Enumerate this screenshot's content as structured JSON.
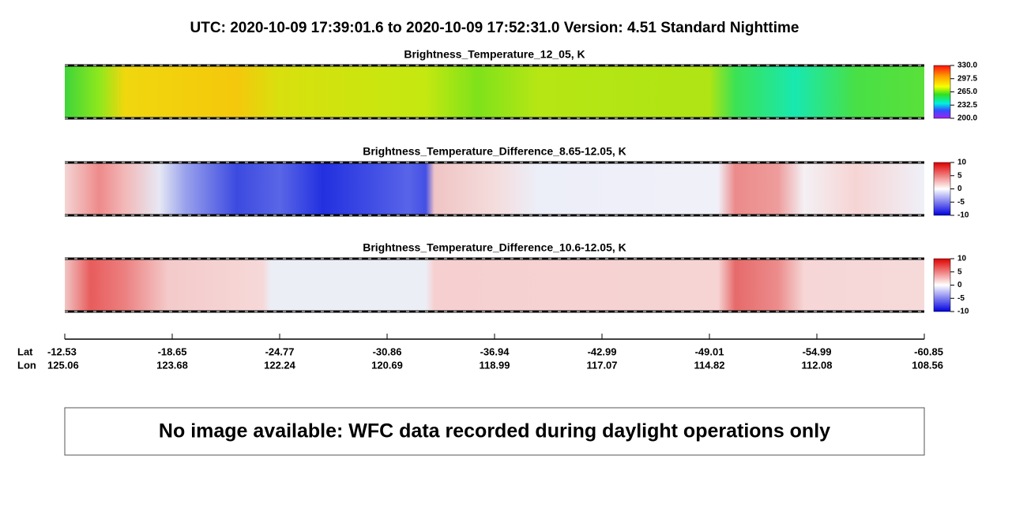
{
  "header": {
    "title": "UTC:  2020-10-09   17:39:01.6  to  2020-10-09   17:52:31.0    Version: 4.51  Standard Nighttime"
  },
  "panels": [
    {
      "title": "Brightness_Temperature_12_05, K",
      "colorbar_ticks": [
        "330.0",
        "297.5",
        "265.0",
        "232.5",
        "200.0"
      ]
    },
    {
      "title": "Brightness_Temperature_Difference_8.65-12.05, K",
      "colorbar_ticks": [
        "10",
        "5",
        "0",
        "-5",
        "-10"
      ]
    },
    {
      "title": "Brightness_Temperature_Difference_10.6-12.05, K",
      "colorbar_ticks": [
        "10",
        "5",
        "0",
        "-5",
        "-10"
      ]
    }
  ],
  "axis": {
    "lat_label": "Lat",
    "lon_label": "Lon",
    "lat": [
      "-12.53",
      "-18.65",
      "-24.77",
      "-30.86",
      "-36.94",
      "-42.99",
      "-49.01",
      "-54.99",
      "-60.85"
    ],
    "lon": [
      "125.06",
      "123.68",
      "122.24",
      "120.69",
      "118.99",
      "117.07",
      "114.82",
      "112.08",
      "108.56"
    ]
  },
  "message": "No image available: WFC data recorded during daylight operations only"
}
